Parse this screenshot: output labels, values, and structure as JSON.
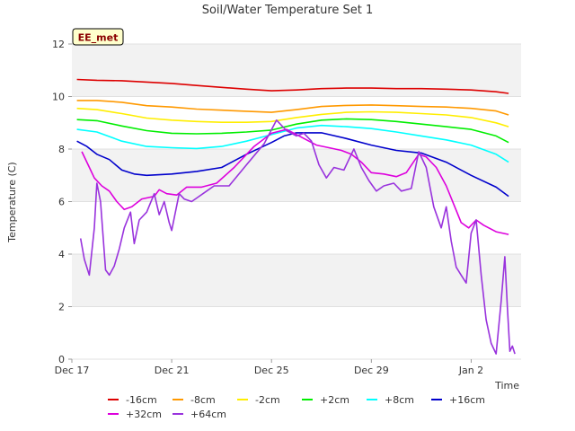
{
  "chart_data": {
    "type": "line",
    "title": "Soil/Water Temperature Set 1",
    "xlabel": "Time",
    "ylabel": "Temperature (C)",
    "badge": "EE_met",
    "x_unit": "day",
    "x_tick_labels": [
      "Dec 17",
      "Dec 21",
      "Dec 25",
      "Dec 29",
      "Jan 2"
    ],
    "x_ticks": [
      0,
      4,
      8,
      12,
      16
    ],
    "xlim": [
      0,
      18
    ],
    "ylim": [
      0,
      12
    ],
    "y_ticks": [
      0,
      2,
      4,
      6,
      8,
      10,
      12
    ],
    "grid": "horizontal alternating bands",
    "legend_position": "bottom",
    "series": [
      {
        "name": "-16cm",
        "color": "#dd0000",
        "points": [
          [
            0.2,
            10.65
          ],
          [
            1,
            10.62
          ],
          [
            2,
            10.6
          ],
          [
            3,
            10.55
          ],
          [
            4,
            10.5
          ],
          [
            5,
            10.42
          ],
          [
            6,
            10.35
          ],
          [
            7,
            10.28
          ],
          [
            8,
            10.22
          ],
          [
            9,
            10.25
          ],
          [
            10,
            10.3
          ],
          [
            11,
            10.32
          ],
          [
            12,
            10.32
          ],
          [
            13,
            10.3
          ],
          [
            14,
            10.3
          ],
          [
            15,
            10.28
          ],
          [
            16,
            10.25
          ],
          [
            17,
            10.18
          ],
          [
            17.5,
            10.12
          ]
        ]
      },
      {
        "name": "-8cm",
        "color": "#ff9900",
        "points": [
          [
            0.2,
            9.85
          ],
          [
            1,
            9.85
          ],
          [
            2,
            9.78
          ],
          [
            3,
            9.65
          ],
          [
            4,
            9.6
          ],
          [
            5,
            9.52
          ],
          [
            6,
            9.48
          ],
          [
            7,
            9.44
          ],
          [
            8,
            9.4
          ],
          [
            9,
            9.5
          ],
          [
            10,
            9.62
          ],
          [
            11,
            9.66
          ],
          [
            12,
            9.68
          ],
          [
            13,
            9.65
          ],
          [
            14,
            9.62
          ],
          [
            15,
            9.6
          ],
          [
            16,
            9.55
          ],
          [
            17,
            9.45
          ],
          [
            17.5,
            9.3
          ]
        ]
      },
      {
        "name": "-2cm",
        "color": "#ffee00",
        "points": [
          [
            0.2,
            9.55
          ],
          [
            1,
            9.5
          ],
          [
            2,
            9.35
          ],
          [
            3,
            9.18
          ],
          [
            4,
            9.1
          ],
          [
            5,
            9.05
          ],
          [
            6,
            9.02
          ],
          [
            7,
            9.02
          ],
          [
            8,
            9.05
          ],
          [
            9,
            9.2
          ],
          [
            10,
            9.32
          ],
          [
            11,
            9.4
          ],
          [
            12,
            9.42
          ],
          [
            13,
            9.4
          ],
          [
            14,
            9.35
          ],
          [
            15,
            9.3
          ],
          [
            16,
            9.2
          ],
          [
            17,
            9.0
          ],
          [
            17.5,
            8.85
          ]
        ]
      },
      {
        "name": "+2cm",
        "color": "#00ee00",
        "points": [
          [
            0.2,
            9.12
          ],
          [
            1,
            9.08
          ],
          [
            2,
            8.88
          ],
          [
            3,
            8.7
          ],
          [
            4,
            8.6
          ],
          [
            5,
            8.58
          ],
          [
            6,
            8.6
          ],
          [
            7,
            8.65
          ],
          [
            8,
            8.72
          ],
          [
            9,
            8.95
          ],
          [
            10,
            9.1
          ],
          [
            11,
            9.15
          ],
          [
            12,
            9.12
          ],
          [
            13,
            9.05
          ],
          [
            14,
            8.95
          ],
          [
            15,
            8.85
          ],
          [
            16,
            8.75
          ],
          [
            17,
            8.5
          ],
          [
            17.5,
            8.25
          ]
        ]
      },
      {
        "name": "+8cm",
        "color": "#00ffff",
        "points": [
          [
            0.2,
            8.75
          ],
          [
            1,
            8.65
          ],
          [
            2,
            8.3
          ],
          [
            3,
            8.1
          ],
          [
            4,
            8.05
          ],
          [
            5,
            8.02
          ],
          [
            6,
            8.1
          ],
          [
            7,
            8.3
          ],
          [
            8,
            8.55
          ],
          [
            9,
            8.8
          ],
          [
            10,
            8.9
          ],
          [
            11,
            8.85
          ],
          [
            12,
            8.78
          ],
          [
            13,
            8.65
          ],
          [
            14,
            8.5
          ],
          [
            15,
            8.35
          ],
          [
            16,
            8.15
          ],
          [
            17,
            7.8
          ],
          [
            17.5,
            7.5
          ]
        ]
      },
      {
        "name": "+16cm",
        "color": "#0000cc",
        "points": [
          [
            0.2,
            8.3
          ],
          [
            0.6,
            8.1
          ],
          [
            1,
            7.8
          ],
          [
            1.5,
            7.6
          ],
          [
            2,
            7.2
          ],
          [
            2.5,
            7.05
          ],
          [
            3,
            7.0
          ],
          [
            4,
            7.05
          ],
          [
            5,
            7.15
          ],
          [
            6,
            7.3
          ],
          [
            7,
            7.8
          ],
          [
            8,
            8.25
          ],
          [
            8.5,
            8.5
          ],
          [
            9,
            8.62
          ],
          [
            10,
            8.62
          ],
          [
            11,
            8.4
          ],
          [
            12,
            8.15
          ],
          [
            13,
            7.95
          ],
          [
            14,
            7.85
          ],
          [
            15,
            7.5
          ],
          [
            16,
            7.0
          ],
          [
            17,
            6.55
          ],
          [
            17.5,
            6.2
          ]
        ]
      },
      {
        "name": "+32cm",
        "color": "#dd00dd",
        "points": [
          [
            0.4,
            7.9
          ],
          [
            0.6,
            7.5
          ],
          [
            0.9,
            6.9
          ],
          [
            1.2,
            6.6
          ],
          [
            1.5,
            6.4
          ],
          [
            1.8,
            6.0
          ],
          [
            2.1,
            5.7
          ],
          [
            2.4,
            5.8
          ],
          [
            2.8,
            6.1
          ],
          [
            3.3,
            6.2
          ],
          [
            3.5,
            6.45
          ],
          [
            3.8,
            6.3
          ],
          [
            4.2,
            6.25
          ],
          [
            4.6,
            6.55
          ],
          [
            5.2,
            6.55
          ],
          [
            5.8,
            6.7
          ],
          [
            6.5,
            7.3
          ],
          [
            7.3,
            8.1
          ],
          [
            8.0,
            8.6
          ],
          [
            8.6,
            8.75
          ],
          [
            9.2,
            8.45
          ],
          [
            9.8,
            8.15
          ],
          [
            10.3,
            8.05
          ],
          [
            10.8,
            7.95
          ],
          [
            11.2,
            7.8
          ],
          [
            11.6,
            7.5
          ],
          [
            12.0,
            7.1
          ],
          [
            12.5,
            7.05
          ],
          [
            13.0,
            6.95
          ],
          [
            13.4,
            7.1
          ],
          [
            13.9,
            7.8
          ],
          [
            14.2,
            7.7
          ],
          [
            14.6,
            7.3
          ],
          [
            15.0,
            6.6
          ],
          [
            15.3,
            5.9
          ],
          [
            15.6,
            5.2
          ],
          [
            15.9,
            5.0
          ],
          [
            16.2,
            5.3
          ],
          [
            16.5,
            5.1
          ],
          [
            17.0,
            4.85
          ],
          [
            17.5,
            4.75
          ]
        ]
      },
      {
        "name": "+64cm",
        "color": "#9933dd",
        "points": [
          [
            0.35,
            4.6
          ],
          [
            0.5,
            3.8
          ],
          [
            0.7,
            3.2
          ],
          [
            0.9,
            5.0
          ],
          [
            1.0,
            6.7
          ],
          [
            1.15,
            6.0
          ],
          [
            1.35,
            3.4
          ],
          [
            1.5,
            3.2
          ],
          [
            1.7,
            3.55
          ],
          [
            1.9,
            4.2
          ],
          [
            2.1,
            5.0
          ],
          [
            2.35,
            5.6
          ],
          [
            2.5,
            4.4
          ],
          [
            2.7,
            5.3
          ],
          [
            3.0,
            5.6
          ],
          [
            3.3,
            6.3
          ],
          [
            3.5,
            5.5
          ],
          [
            3.7,
            6.0
          ],
          [
            3.9,
            5.2
          ],
          [
            4.0,
            4.9
          ],
          [
            4.3,
            6.3
          ],
          [
            4.5,
            6.1
          ],
          [
            4.8,
            6.0
          ],
          [
            5.1,
            6.2
          ],
          [
            5.4,
            6.4
          ],
          [
            5.7,
            6.6
          ],
          [
            6.3,
            6.6
          ],
          [
            7.0,
            7.4
          ],
          [
            7.7,
            8.2
          ],
          [
            8.2,
            9.1
          ],
          [
            8.6,
            8.7
          ],
          [
            9.0,
            8.5
          ],
          [
            9.3,
            8.6
          ],
          [
            9.6,
            8.3
          ],
          [
            9.9,
            7.4
          ],
          [
            10.2,
            6.9
          ],
          [
            10.5,
            7.3
          ],
          [
            10.9,
            7.2
          ],
          [
            11.1,
            7.6
          ],
          [
            11.3,
            8.0
          ],
          [
            11.6,
            7.3
          ],
          [
            11.9,
            6.8
          ],
          [
            12.2,
            6.4
          ],
          [
            12.5,
            6.6
          ],
          [
            12.9,
            6.7
          ],
          [
            13.2,
            6.4
          ],
          [
            13.6,
            6.5
          ],
          [
            13.9,
            7.9
          ],
          [
            14.2,
            7.3
          ],
          [
            14.5,
            5.8
          ],
          [
            14.8,
            5.0
          ],
          [
            15.0,
            5.8
          ],
          [
            15.2,
            4.5
          ],
          [
            15.4,
            3.5
          ],
          [
            15.6,
            3.2
          ],
          [
            15.8,
            2.9
          ],
          [
            16.0,
            4.8
          ],
          [
            16.2,
            5.3
          ],
          [
            16.4,
            3.2
          ],
          [
            16.6,
            1.5
          ],
          [
            16.8,
            0.6
          ],
          [
            17.0,
            0.2
          ],
          [
            17.2,
            2.2
          ],
          [
            17.35,
            3.9
          ],
          [
            17.45,
            2.0
          ],
          [
            17.55,
            0.3
          ],
          [
            17.65,
            0.5
          ],
          [
            17.75,
            0.2
          ]
        ]
      }
    ]
  }
}
